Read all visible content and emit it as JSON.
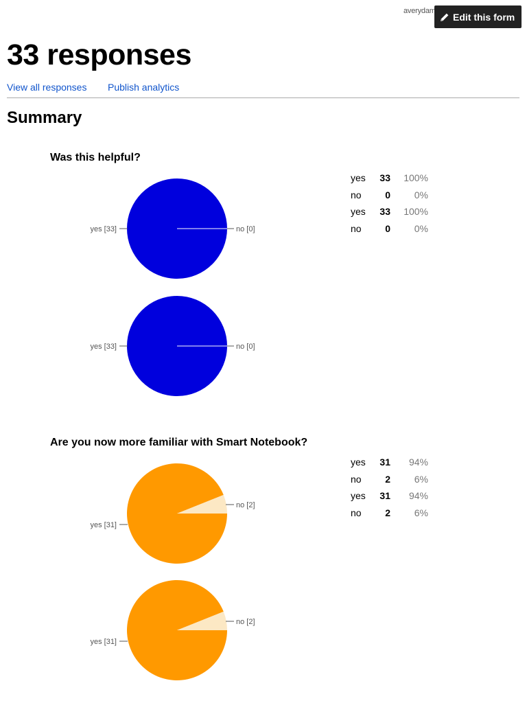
{
  "header": {
    "user_email": "averydamato@gmail.com",
    "edit_button_label": "Edit this form",
    "title": "33 responses",
    "links": [
      "View all responses",
      "Publish analytics"
    ]
  },
  "summary_heading": "Summary",
  "colors": {
    "link": "#1155cc",
    "q1_yes": "#0000dd",
    "q2_yes": "#ff9900",
    "q2_no": "#fce8c4",
    "leader": "#555555"
  },
  "questions": [
    {
      "title": "Was this helpful?",
      "rows": [
        {
          "label": "yes",
          "count": "33",
          "percent": "100%"
        },
        {
          "label": "no",
          "count": "0",
          "percent": "0%"
        },
        {
          "label": "yes",
          "count": "33",
          "percent": "100%"
        },
        {
          "label": "no",
          "count": "0",
          "percent": "0%"
        }
      ],
      "pie_labels": {
        "yes": "yes [33]",
        "no": "no [0]"
      }
    },
    {
      "title": "Are you now more familiar with Smart Notebook?",
      "rows": [
        {
          "label": "yes",
          "count": "31",
          "percent": "94%"
        },
        {
          "label": "no",
          "count": "2",
          "percent": "6%"
        },
        {
          "label": "yes",
          "count": "31",
          "percent": "94%"
        },
        {
          "label": "no",
          "count": "2",
          "percent": "6%"
        }
      ],
      "pie_labels": {
        "yes": "yes [31]",
        "no": "no [2]"
      }
    }
  ],
  "chart_data": [
    {
      "type": "pie",
      "categories": [
        "yes",
        "no"
      ],
      "values": [
        33,
        0
      ],
      "colors": [
        "#0000dd",
        "#ffffff"
      ]
    },
    {
      "type": "pie",
      "categories": [
        "yes",
        "no"
      ],
      "values": [
        33,
        0
      ],
      "colors": [
        "#0000dd",
        "#ffffff"
      ]
    },
    {
      "type": "pie",
      "categories": [
        "yes",
        "no"
      ],
      "values": [
        31,
        2
      ],
      "colors": [
        "#ff9900",
        "#fce8c4"
      ]
    },
    {
      "type": "pie",
      "categories": [
        "yes",
        "no"
      ],
      "values": [
        31,
        2
      ],
      "colors": [
        "#ff9900",
        "#fce8c4"
      ]
    }
  ]
}
